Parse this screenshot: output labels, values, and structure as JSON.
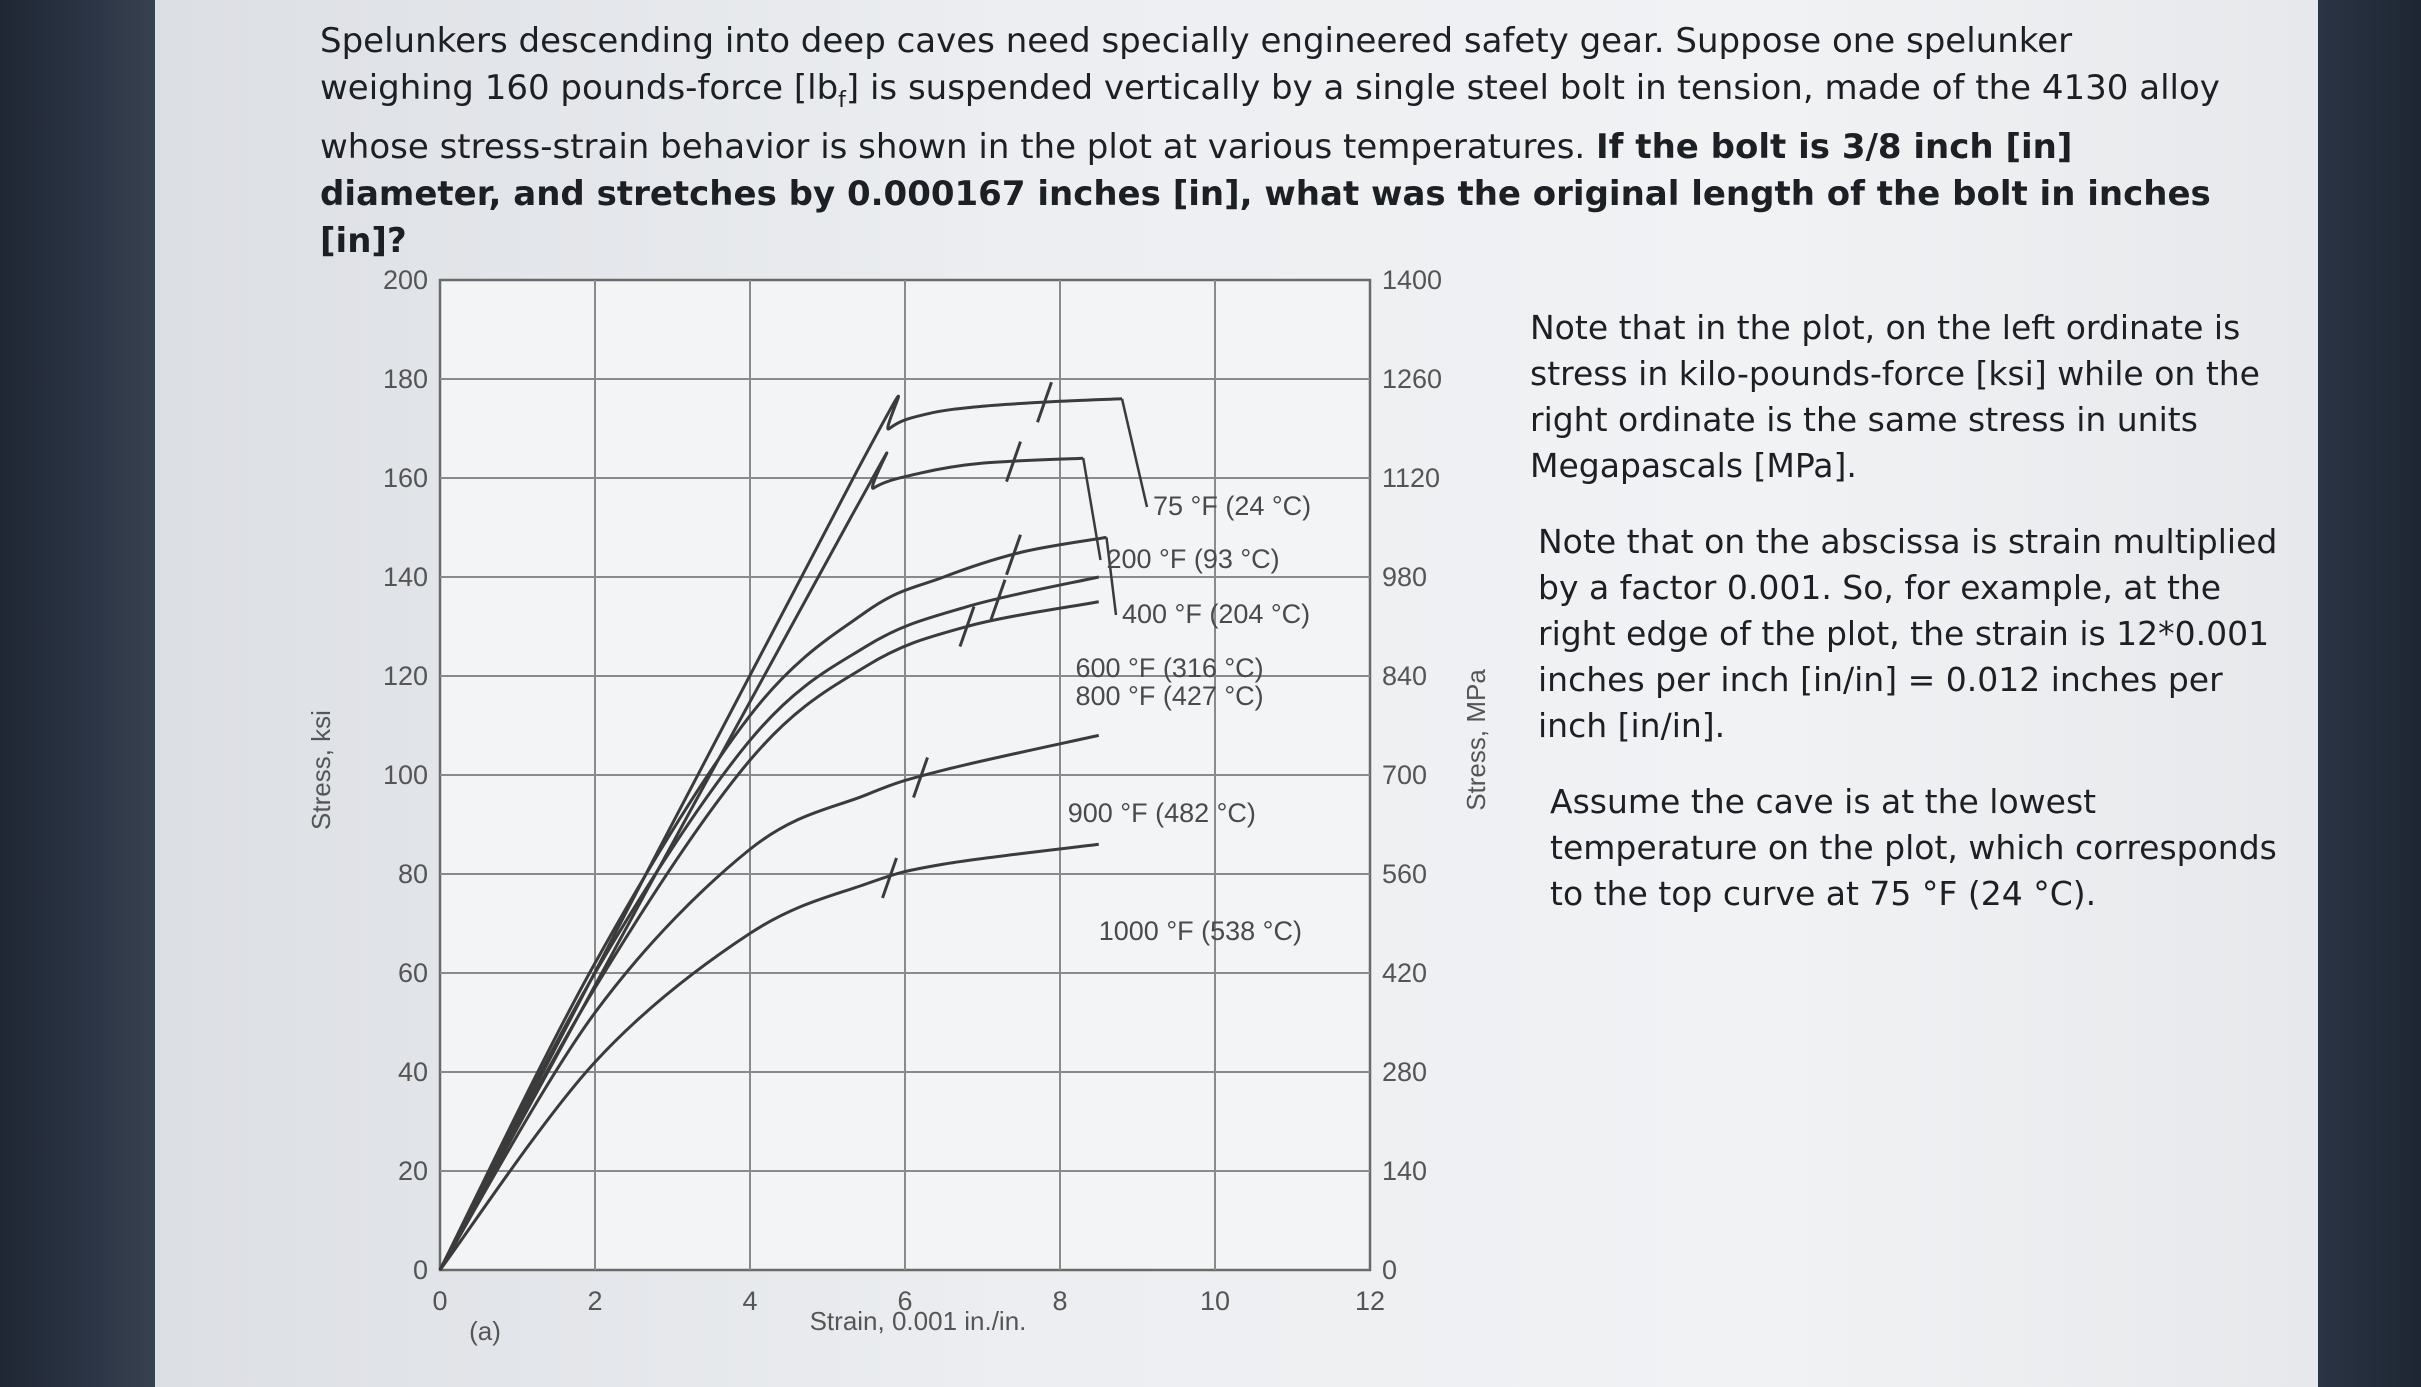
{
  "question": {
    "part1": "Spelunkers descending into deep caves need specially engineered safety gear. Suppose one spelunker weighing 160 pounds-force [lb",
    "sub_f": "f",
    "part2": "] is suspended vertically by a single steel bolt in tension, made of the 4130 alloy whose stress-strain behavior is shown in the plot at various temperatures. ",
    "bold": "If the bolt is 3/8 inch [in] diameter, and stretches by 0.000167 inches [in], what was the original length of the bolt in inches [in]?"
  },
  "notes": [
    "Note that in the plot, on the left ordinate is stress in kilo-pounds-force [ksi] while on the right ordinate is the same stress in units Megapascals [MPa].",
    "Note that on the abscissa is strain multiplied by a factor 0.001. So, for example, at the right edge of the plot, the strain is 12*0.001 inches per inch [in/in] = 0.012 inches per inch [in/in].",
    "Assume the cave is at the lowest temperature on the plot, which corresponds to the top curve at 75 °F (24 °C)."
  ],
  "chart_data": {
    "type": "line",
    "xlabel": "Strain, 0.001 in./in.",
    "ylabel": "Stress, ksi",
    "ylabel_right": "Stress, MPa",
    "panel_label": "(a)",
    "xlim": [
      0,
      12
    ],
    "ylim": [
      0,
      200
    ],
    "x_ticks": [
      "0",
      "2",
      "4",
      "6",
      "8",
      "10",
      "12"
    ],
    "y_ticks": [
      "0",
      "20",
      "40",
      "60",
      "80",
      "100",
      "120",
      "140",
      "160",
      "180",
      "200"
    ],
    "y_ticks_right": [
      "0",
      "140",
      "280",
      "420",
      "560",
      "700",
      "840",
      "980",
      "1120",
      "1260",
      "1400"
    ],
    "grid": true,
    "series": [
      {
        "name": "75 °F (24 °C)",
        "x": [
          0,
          5.4,
          5.8,
          6.3,
          7,
          8,
          8.8
        ],
        "y": [
          0,
          162,
          170,
          173,
          174.5,
          175.5,
          176
        ],
        "mark_x": 7.8
      },
      {
        "name": "200 °F (93 °C)",
        "x": [
          0,
          5.3,
          5.6,
          6.2,
          7,
          8.3
        ],
        "y": [
          0,
          152,
          158,
          161,
          163,
          164
        ],
        "mark_x": 7.4
      },
      {
        "name": "400 °F (204 °C)",
        "x": [
          0,
          2,
          4,
          5.5,
          6.5,
          7.5,
          8.6
        ],
        "y": [
          0,
          62,
          112,
          133,
          140,
          145,
          148
        ],
        "mark_x": 7.4
      },
      {
        "name": "600 °F (316 °C)",
        "x": [
          0,
          2,
          4,
          5.5,
          6.8,
          8.5
        ],
        "y": [
          0,
          60,
          107,
          126,
          134,
          140
        ],
        "mark_x": 7.2
      },
      {
        "name": "800 °F (427 °C)",
        "x": [
          0,
          2,
          4,
          5.5,
          6.8,
          8.5
        ],
        "y": [
          0,
          57,
          103,
          122,
          130,
          135
        ],
        "mark_x": 6.8
      },
      {
        "name": "900 °F (482 °C)",
        "x": [
          0,
          2,
          4,
          5.5,
          6.5,
          8.5
        ],
        "y": [
          0,
          52,
          85,
          96,
          101,
          108
        ],
        "mark_x": 6.2
      },
      {
        "name": "1000 °F (538 °C)",
        "x": [
          0,
          2,
          4,
          5.5,
          6.5,
          8.5
        ],
        "y": [
          0,
          42,
          68,
          78,
          82,
          86
        ],
        "mark_x": 5.8
      }
    ],
    "label_anchor_x": [
      9.2,
      8.6,
      8.8,
      8.2,
      8.2,
      8.1,
      8.5
    ]
  }
}
